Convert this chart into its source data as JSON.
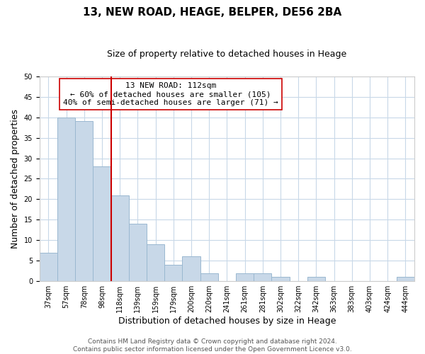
{
  "title": "13, NEW ROAD, HEAGE, BELPER, DE56 2BA",
  "subtitle": "Size of property relative to detached houses in Heage",
  "xlabel": "Distribution of detached houses by size in Heage",
  "ylabel": "Number of detached properties",
  "bar_labels": [
    "37sqm",
    "57sqm",
    "78sqm",
    "98sqm",
    "118sqm",
    "139sqm",
    "159sqm",
    "179sqm",
    "200sqm",
    "220sqm",
    "241sqm",
    "261sqm",
    "281sqm",
    "302sqm",
    "322sqm",
    "342sqm",
    "363sqm",
    "383sqm",
    "403sqm",
    "424sqm",
    "444sqm"
  ],
  "bar_values": [
    7,
    40,
    39,
    28,
    21,
    14,
    9,
    4,
    6,
    2,
    0,
    2,
    2,
    1,
    0,
    1,
    0,
    0,
    0,
    0,
    1
  ],
  "bar_color": "#c8d8e8",
  "bar_edge_color": "#9ab8d0",
  "property_line_color": "#cc0000",
  "annotation_text": "13 NEW ROAD: 112sqm\n← 60% of detached houses are smaller (105)\n40% of semi-detached houses are larger (71) →",
  "annotation_box_color": "#ffffff",
  "annotation_box_edge_color": "#cc0000",
  "ylim": [
    0,
    50
  ],
  "yticks": [
    0,
    5,
    10,
    15,
    20,
    25,
    30,
    35,
    40,
    45,
    50
  ],
  "footer_line1": "Contains HM Land Registry data © Crown copyright and database right 2024.",
  "footer_line2": "Contains public sector information licensed under the Open Government Licence v3.0.",
  "background_color": "#ffffff",
  "grid_color": "#c8d8e8",
  "title_fontsize": 11,
  "subtitle_fontsize": 9,
  "axis_label_fontsize": 9,
  "tick_fontsize": 7,
  "annotation_fontsize": 8,
  "footer_fontsize": 6.5
}
